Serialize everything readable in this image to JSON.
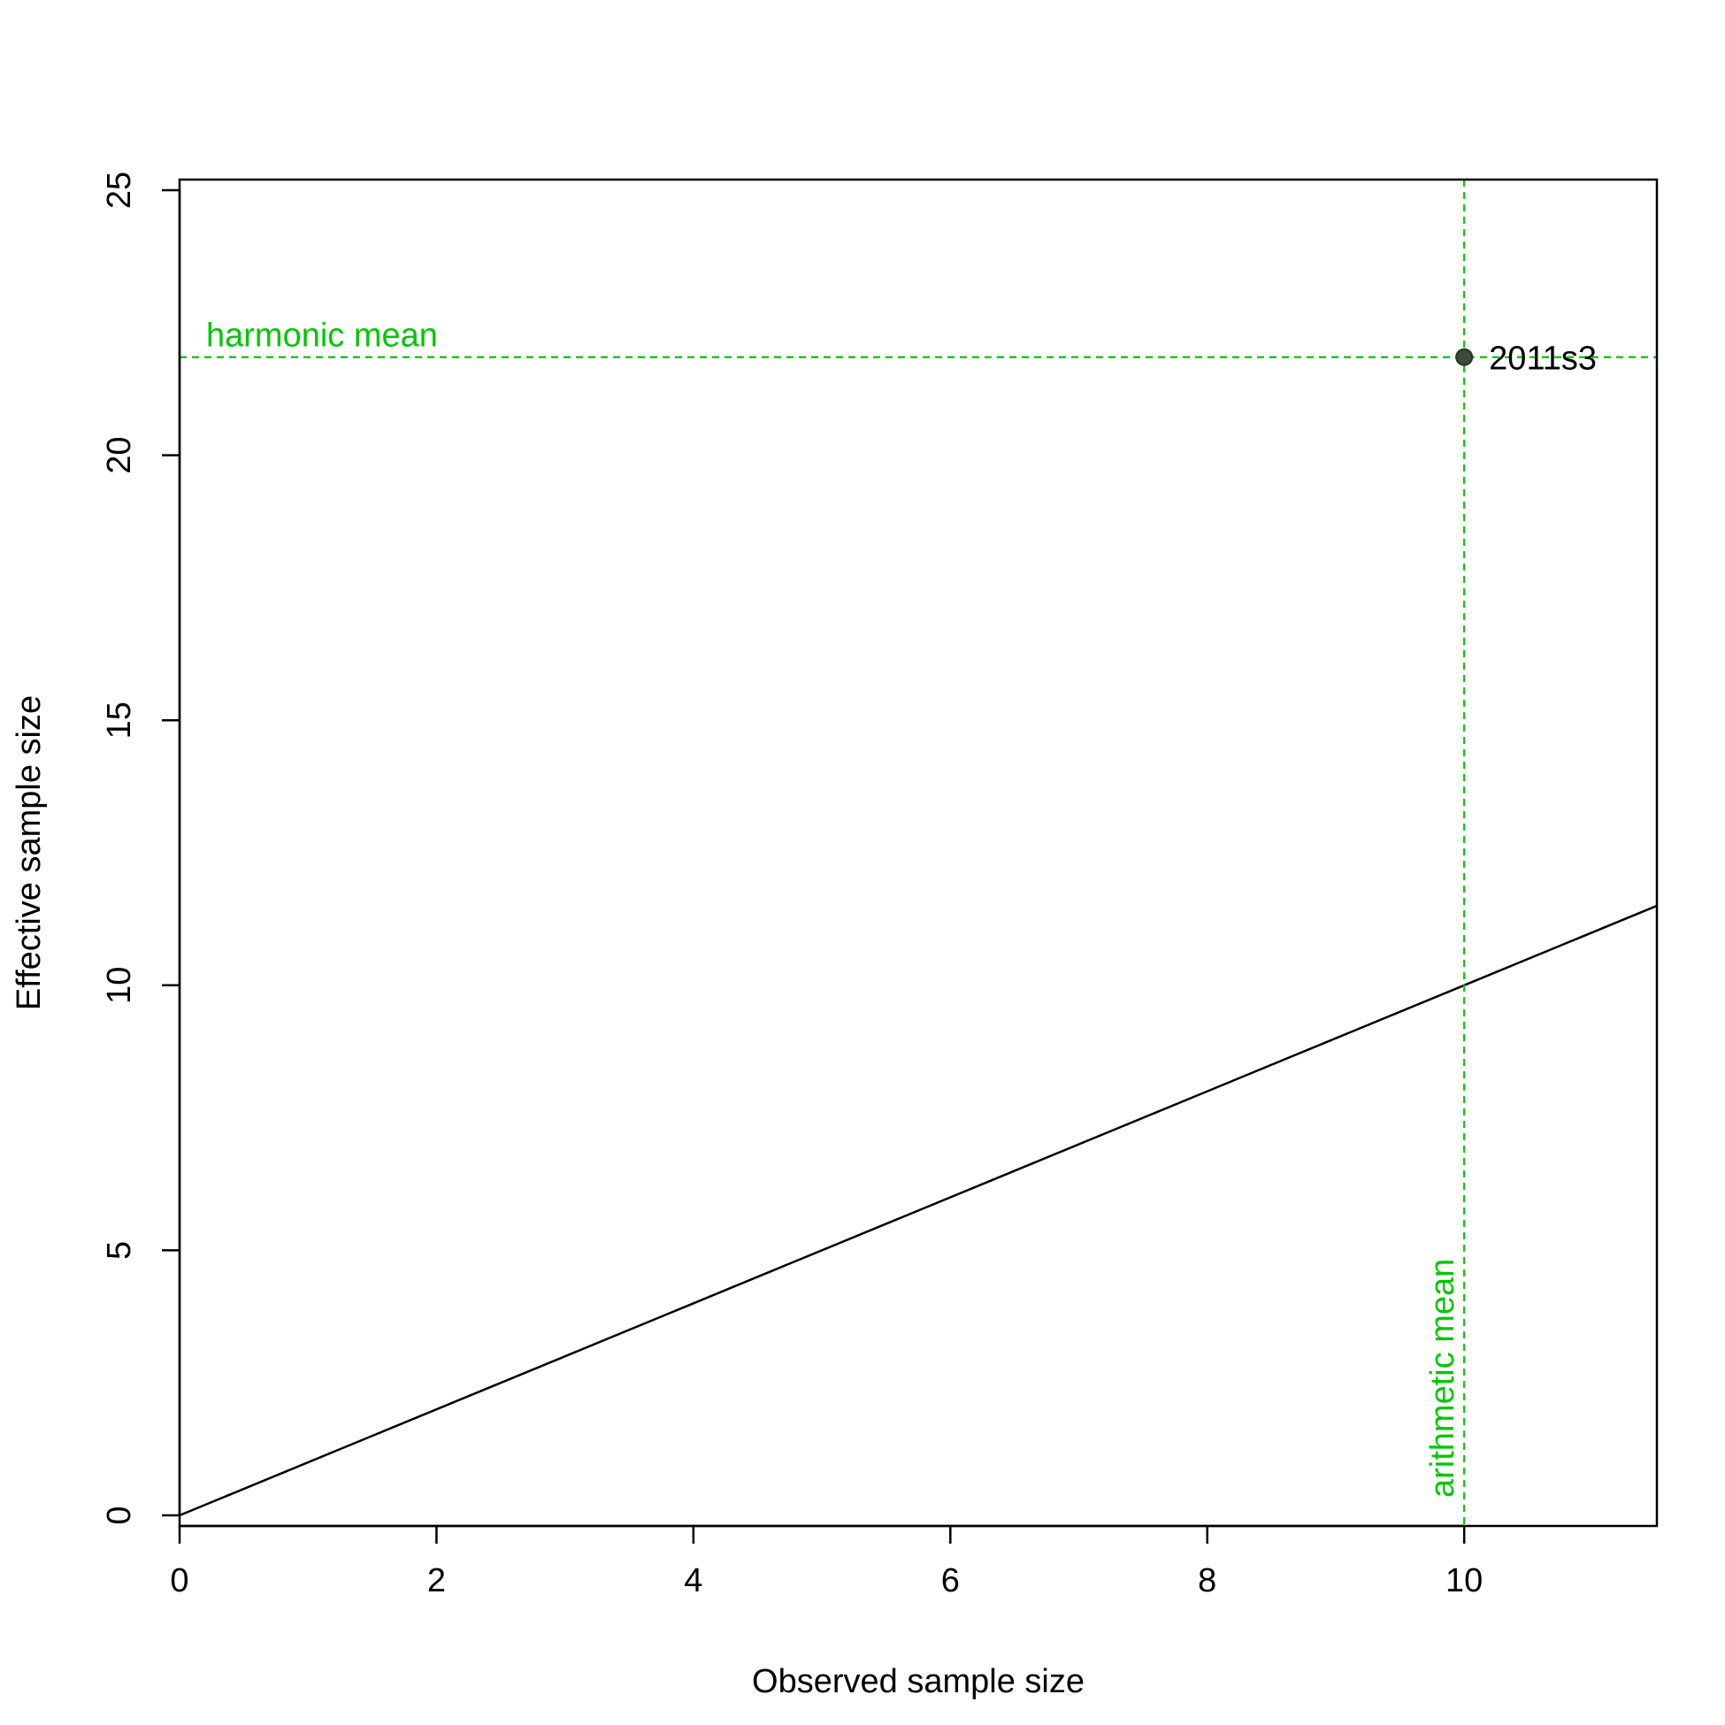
{
  "chart_data": {
    "type": "scatter",
    "title": "",
    "xlabel": "Observed sample size",
    "ylabel": "Effective sample size",
    "xlim": [
      0,
      11.5
    ],
    "ylim": [
      -0.2,
      25.2
    ],
    "x_ticks": [
      0,
      2,
      4,
      6,
      8,
      10
    ],
    "x_tick_labels": [
      "0",
      "2",
      "4",
      "6",
      "8",
      "10"
    ],
    "y_ticks": [
      0,
      5,
      10,
      15,
      20,
      25
    ],
    "y_tick_labels": [
      "0",
      "5",
      "10",
      "15",
      "20",
      "25"
    ],
    "grid": false,
    "points": [
      {
        "x": 10,
        "y": 21.85,
        "label": "2011s3"
      }
    ],
    "reference_line": {
      "type": "1:1",
      "slope": 1,
      "intercept": 0
    },
    "harmonic_mean": {
      "value": 21.85,
      "label": "harmonic mean"
    },
    "arithmetic_mean": {
      "value": 10,
      "label": "arithmetic mean"
    },
    "colors": {
      "mean_lines": "#00c800",
      "point_fill": "#3c4a3c",
      "reference_line": "#000000"
    }
  }
}
